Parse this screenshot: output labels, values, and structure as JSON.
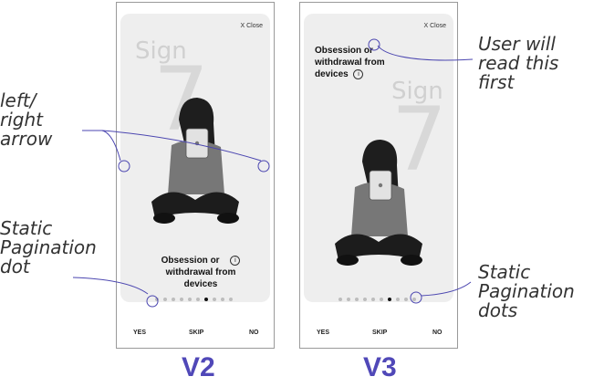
{
  "v2": {
    "close_label": "X Close",
    "sign_word": "Sign",
    "sign_number": "7",
    "title_line1": "Obsession or",
    "title_line2": "withdrawal from",
    "title_line3": "devices",
    "info_icon": "i",
    "yes_label": "YES",
    "skip_label": "SKIP",
    "no_label": "NO",
    "version_label": "V2",
    "dots_total": 10,
    "dots_active_index": 6
  },
  "v3": {
    "close_label": "X Close",
    "sign_word": "Sign",
    "sign_number": "7",
    "title_line1": "Obsession or",
    "title_line2": "withdrawal from",
    "title_line3": "devices",
    "info_icon": "i",
    "yes_label": "YES",
    "skip_label": "SKIP",
    "no_label": "NO",
    "version_label": "V3",
    "dots_total": 10,
    "dots_active_index": 6
  },
  "annotations": {
    "arrow_line1": "left/",
    "arrow_line2": "right",
    "arrow_line3": "arrow",
    "pagination_v2_line1": "Static",
    "pagination_v2_line2": "Pagination",
    "pagination_v2_line3": "dot",
    "read_first_line1": "User will",
    "read_first_line2": "read this",
    "read_first_line3": "first",
    "pagination_v3_line1": "Static",
    "pagination_v3_line2": "Pagination",
    "pagination_v3_line3": "dots"
  },
  "colors": {
    "accent": "#5048b8",
    "callout": "#4b46b0"
  }
}
